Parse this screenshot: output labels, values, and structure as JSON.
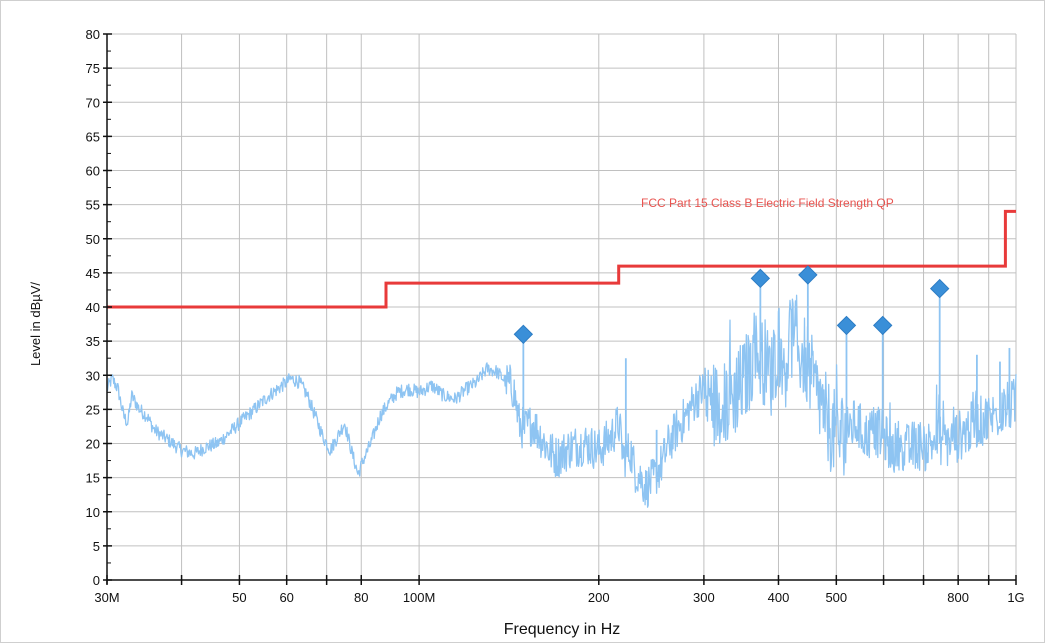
{
  "chart_data": {
    "type": "line",
    "x_scale": "log",
    "xlabel": "Frequency in Hz",
    "ylabel": "Level in dBµV/",
    "xlim": [
      30,
      1000
    ],
    "ylim": [
      0,
      80
    ],
    "x_tick_values": [
      30,
      40,
      50,
      60,
      70,
      80,
      100,
      200,
      300,
      400,
      500,
      600,
      700,
      800,
      900,
      1000
    ],
    "x_tick_labels": [
      {
        "value": 30,
        "label": "30M"
      },
      {
        "value": 50,
        "label": "50"
      },
      {
        "value": 60,
        "label": "60"
      },
      {
        "value": 80,
        "label": "80"
      },
      {
        "value": 100,
        "label": "100M"
      },
      {
        "value": 200,
        "label": "200"
      },
      {
        "value": 300,
        "label": "300"
      },
      {
        "value": 400,
        "label": "400"
      },
      {
        "value": 500,
        "label": "500"
      },
      {
        "value": 800,
        "label": "800"
      },
      {
        "value": 1000,
        "label": "1G"
      }
    ],
    "y_ticks": [
      0,
      5,
      10,
      15,
      20,
      25,
      30,
      35,
      40,
      45,
      50,
      55,
      60,
      65,
      70,
      75,
      80
    ],
    "grid": true,
    "colors": {
      "grid": "#c0c0c0",
      "spectrum": "#8ec4f2",
      "limit": "#e83a3a",
      "marker": "#3a8fd8",
      "limit_label": "#e8534f"
    },
    "limit_line": {
      "name": "FCC Part 15 Class B Electric Field Strength QP",
      "points": [
        [
          30,
          40
        ],
        [
          88,
          40
        ],
        [
          88,
          43.5
        ],
        [
          216,
          43.5
        ],
        [
          216,
          46
        ],
        [
          960,
          46
        ],
        [
          960,
          54
        ],
        [
          1000,
          54
        ]
      ]
    },
    "spectrum": {
      "points": [
        [
          30,
          28
        ],
        [
          30.6,
          29.5
        ],
        [
          31.3,
          28
        ],
        [
          32,
          24
        ],
        [
          32.5,
          23
        ],
        [
          33,
          27
        ],
        [
          34,
          25
        ],
        [
          35,
          24
        ],
        [
          36,
          22
        ],
        [
          38,
          20.5
        ],
        [
          40,
          19
        ],
        [
          42,
          18.5
        ],
        [
          44,
          19.5
        ],
        [
          46,
          20
        ],
        [
          48,
          21.5
        ],
        [
          50,
          23
        ],
        [
          53,
          25
        ],
        [
          56,
          27
        ],
        [
          59,
          28.5
        ],
        [
          61,
          29.5
        ],
        [
          63,
          29
        ],
        [
          65,
          27
        ],
        [
          67,
          24
        ],
        [
          69,
          21
        ],
        [
          71,
          19
        ],
        [
          73,
          21
        ],
        [
          75,
          23
        ],
        [
          77,
          19
        ],
        [
          79,
          15.5
        ],
        [
          81,
          18
        ],
        [
          83,
          20
        ],
        [
          86,
          24
        ],
        [
          89,
          26
        ],
        [
          92,
          27.5
        ],
        [
          96,
          28
        ],
        [
          100,
          27.5
        ],
        [
          105,
          28.5
        ],
        [
          110,
          27
        ],
        [
          115,
          26.5
        ],
        [
          120,
          28
        ],
        [
          125,
          29
        ],
        [
          130,
          31
        ],
        [
          135,
          30.5
        ],
        [
          140,
          29
        ],
        [
          144,
          28
        ],
        [
          147,
          23
        ],
        [
          150,
          22
        ],
        [
          155,
          23
        ],
        [
          160,
          21
        ],
        [
          165,
          19
        ],
        [
          170,
          18
        ],
        [
          180,
          19.5
        ],
        [
          190,
          20
        ],
        [
          200,
          19
        ],
        [
          210,
          21
        ],
        [
          216,
          23
        ],
        [
          220,
          18
        ],
        [
          226,
          19
        ],
        [
          230,
          16
        ],
        [
          235,
          15
        ],
        [
          240,
          13.5
        ],
        [
          248,
          15
        ],
        [
          255,
          17
        ],
        [
          262,
          20
        ],
        [
          270,
          22
        ],
        [
          280,
          24
        ],
        [
          290,
          26.5
        ],
        [
          300,
          28
        ],
        [
          310,
          26
        ],
        [
          320,
          25
        ],
        [
          335,
          27
        ],
        [
          350,
          29
        ],
        [
          365,
          33
        ],
        [
          380,
          32
        ],
        [
          390,
          30
        ],
        [
          400,
          35
        ],
        [
          410,
          31
        ],
        [
          420,
          36
        ],
        [
          430,
          34
        ],
        [
          445,
          32
        ],
        [
          460,
          28
        ],
        [
          475,
          25
        ],
        [
          490,
          22
        ],
        [
          505,
          21
        ],
        [
          520,
          22
        ],
        [
          540,
          23
        ],
        [
          560,
          21
        ],
        [
          580,
          22
        ],
        [
          600,
          21
        ],
        [
          620,
          19
        ],
        [
          640,
          20
        ],
        [
          660,
          19
        ],
        [
          680,
          20
        ],
        [
          700,
          19.5
        ],
        [
          720,
          20
        ],
        [
          740,
          21
        ],
        [
          760,
          20
        ],
        [
          780,
          20.5
        ],
        [
          800,
          21
        ],
        [
          830,
          22
        ],
        [
          860,
          23
        ],
        [
          890,
          23.5
        ],
        [
          920,
          24
        ],
        [
          950,
          25
        ],
        [
          980,
          25.5
        ],
        [
          1000,
          26
        ]
      ],
      "spikes": [
        {
          "x": 149.5,
          "top": 36,
          "base": 22
        },
        {
          "x": 222,
          "top": 32.5,
          "base": 18
        },
        {
          "x": 250,
          "top": 22,
          "base": 15
        },
        {
          "x": 373,
          "top": 44,
          "base": 30
        },
        {
          "x": 448,
          "top": 44.5,
          "base": 32
        },
        {
          "x": 520,
          "top": 37,
          "base": 22
        },
        {
          "x": 598,
          "top": 37,
          "base": 21
        },
        {
          "x": 745,
          "top": 42.5,
          "base": 20
        },
        {
          "x": 860,
          "top": 33,
          "base": 22
        },
        {
          "x": 940,
          "top": 32,
          "base": 23
        },
        {
          "x": 975,
          "top": 34,
          "base": 23
        }
      ]
    },
    "markers": [
      {
        "x": 149.5,
        "y": 36
      },
      {
        "x": 373,
        "y": 44.2
      },
      {
        "x": 448,
        "y": 44.7
      },
      {
        "x": 520,
        "y": 37.3
      },
      {
        "x": 598,
        "y": 37.3
      },
      {
        "x": 745,
        "y": 42.7
      }
    ]
  }
}
